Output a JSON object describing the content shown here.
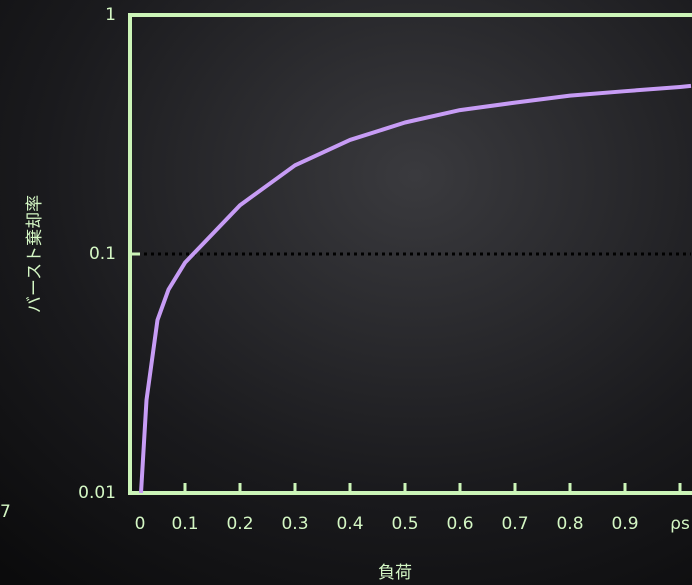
{
  "chart_data": {
    "type": "line",
    "x_label": "負荷",
    "y_label": "バースト棄却率",
    "log_y": true,
    "grid": false,
    "reference_line": 0.1,
    "xlim": [
      0,
      1.02
    ],
    "ylim": [
      0.01,
      1
    ],
    "xticks": [
      0,
      0.1,
      0.2,
      0.3,
      0.4,
      0.5,
      0.6,
      0.7,
      0.8,
      0.9,
      {
        "value": 1,
        "label": "ρs"
      }
    ],
    "yticks": [
      0.01,
      0.1,
      1
    ],
    "series": [
      {
        "color": "#c79cf5",
        "x": [
          0.02,
          0.03,
          0.05,
          0.07,
          0.1,
          0.2,
          0.3,
          0.4,
          0.5,
          0.6,
          0.7,
          0.8,
          0.9,
          1.0,
          1.02
        ],
        "values": [
          0.01,
          0.0245,
          0.053,
          0.071,
          0.092,
          0.16,
          0.235,
          0.3,
          0.355,
          0.4,
          0.43,
          0.46,
          0.48,
          0.5,
          0.505
        ]
      }
    ],
    "side_text": "7"
  }
}
